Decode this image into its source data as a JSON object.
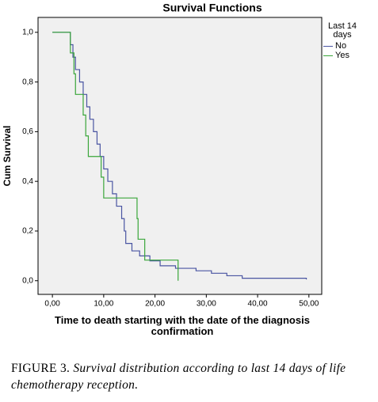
{
  "chart_data": {
    "type": "line",
    "step": true,
    "title": "Survival Functions",
    "x_label": "Time to death starting with the date of the diagnosis confirmation",
    "y_label": "Cum Survival",
    "legend_title": "Last 14 days",
    "legend": "right",
    "background": "#f0f0f0",
    "xlim": [
      -2.8,
      52.5
    ],
    "ylim": [
      -0.055,
      1.06
    ],
    "xticks": [
      {
        "value": 0,
        "label": "0,00"
      },
      {
        "value": 10,
        "label": "10,00"
      },
      {
        "value": 20,
        "label": "20,00"
      },
      {
        "value": 30,
        "label": "30,00"
      },
      {
        "value": 40,
        "label": "40,00"
      },
      {
        "value": 50,
        "label": "50,00"
      }
    ],
    "yticks": [
      {
        "value": 0,
        "label": "0,0"
      },
      {
        "value": 0.2,
        "label": "0,2"
      },
      {
        "value": 0.4,
        "label": "0,4"
      },
      {
        "value": 0.6,
        "label": "0,6"
      },
      {
        "value": 0.8,
        "label": "0,8"
      },
      {
        "value": 1,
        "label": "1,0"
      }
    ],
    "series": [
      {
        "name": "No",
        "color": "#4a55a2",
        "x": [
          0,
          3.5,
          4,
          4.5,
          5.3,
          6,
          6.7,
          7.3,
          8,
          8.7,
          9.3,
          10,
          10.8,
          11.7,
          12.5,
          13.5,
          14,
          14.3,
          15.5,
          17,
          19,
          21,
          24,
          28,
          31,
          34,
          37,
          38.5,
          49.5
        ],
        "values": [
          1,
          0.95,
          0.9,
          0.85,
          0.8,
          0.75,
          0.7,
          0.65,
          0.6,
          0.55,
          0.5,
          0.45,
          0.4,
          0.35,
          0.3,
          0.25,
          0.2,
          0.15,
          0.12,
          0.1,
          0.08,
          0.06,
          0.05,
          0.04,
          0.03,
          0.02,
          0.01,
          0.01,
          0.005
        ]
      },
      {
        "name": "Yes",
        "color": "#3aa63a",
        "x": [
          0,
          3.5,
          4.2,
          4.5,
          6,
          6.5,
          7,
          9.5,
          10,
          16.5,
          16.7,
          18,
          24.5
        ],
        "values": [
          1,
          0.917,
          0.833,
          0.75,
          0.667,
          0.583,
          0.5,
          0.417,
          0.333,
          0.25,
          0.167,
          0.083,
          0
        ]
      }
    ]
  },
  "caption": {
    "label": "FIGURE 3.",
    "text": "Survival distribution according to last 14 days of life chemotherapy reception."
  }
}
